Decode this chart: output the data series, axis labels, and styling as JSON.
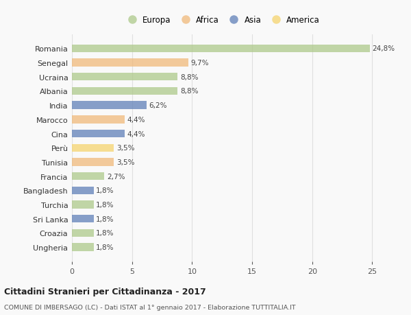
{
  "countries": [
    "Romania",
    "Senegal",
    "Ucraina",
    "Albania",
    "India",
    "Marocco",
    "Cina",
    "Perù",
    "Tunisia",
    "Francia",
    "Bangladesh",
    "Turchia",
    "Sri Lanka",
    "Croazia",
    "Ungheria"
  ],
  "values": [
    24.8,
    9.7,
    8.8,
    8.8,
    6.2,
    4.4,
    4.4,
    3.5,
    3.5,
    2.7,
    1.8,
    1.8,
    1.8,
    1.8,
    1.8
  ],
  "labels": [
    "24,8%",
    "9,7%",
    "8,8%",
    "8,8%",
    "6,2%",
    "4,4%",
    "4,4%",
    "3,5%",
    "3,5%",
    "2,7%",
    "1,8%",
    "1,8%",
    "1,8%",
    "1,8%",
    "1,8%"
  ],
  "continent": [
    "Europa",
    "Africa",
    "Europa",
    "Europa",
    "Asia",
    "Africa",
    "Asia",
    "America",
    "Africa",
    "Europa",
    "Asia",
    "Europa",
    "Asia",
    "Europa",
    "Europa"
  ],
  "colors": {
    "Europa": "#aec98a",
    "Africa": "#f0b97a",
    "Asia": "#6080b8",
    "America": "#f5d46e"
  },
  "legend_order": [
    "Europa",
    "Africa",
    "Asia",
    "America"
  ],
  "title": "Cittadini Stranieri per Cittadinanza - 2017",
  "subtitle": "COMUNE DI IMBERSAGO (LC) - Dati ISTAT al 1° gennaio 2017 - Elaborazione TUTTITALIA.IT",
  "xlim": [
    0,
    26
  ],
  "xticks": [
    0,
    5,
    10,
    15,
    20,
    25
  ],
  "bg_color": "#f9f9f9",
  "grid_color": "#e0e0e0",
  "bar_alpha": 0.75
}
